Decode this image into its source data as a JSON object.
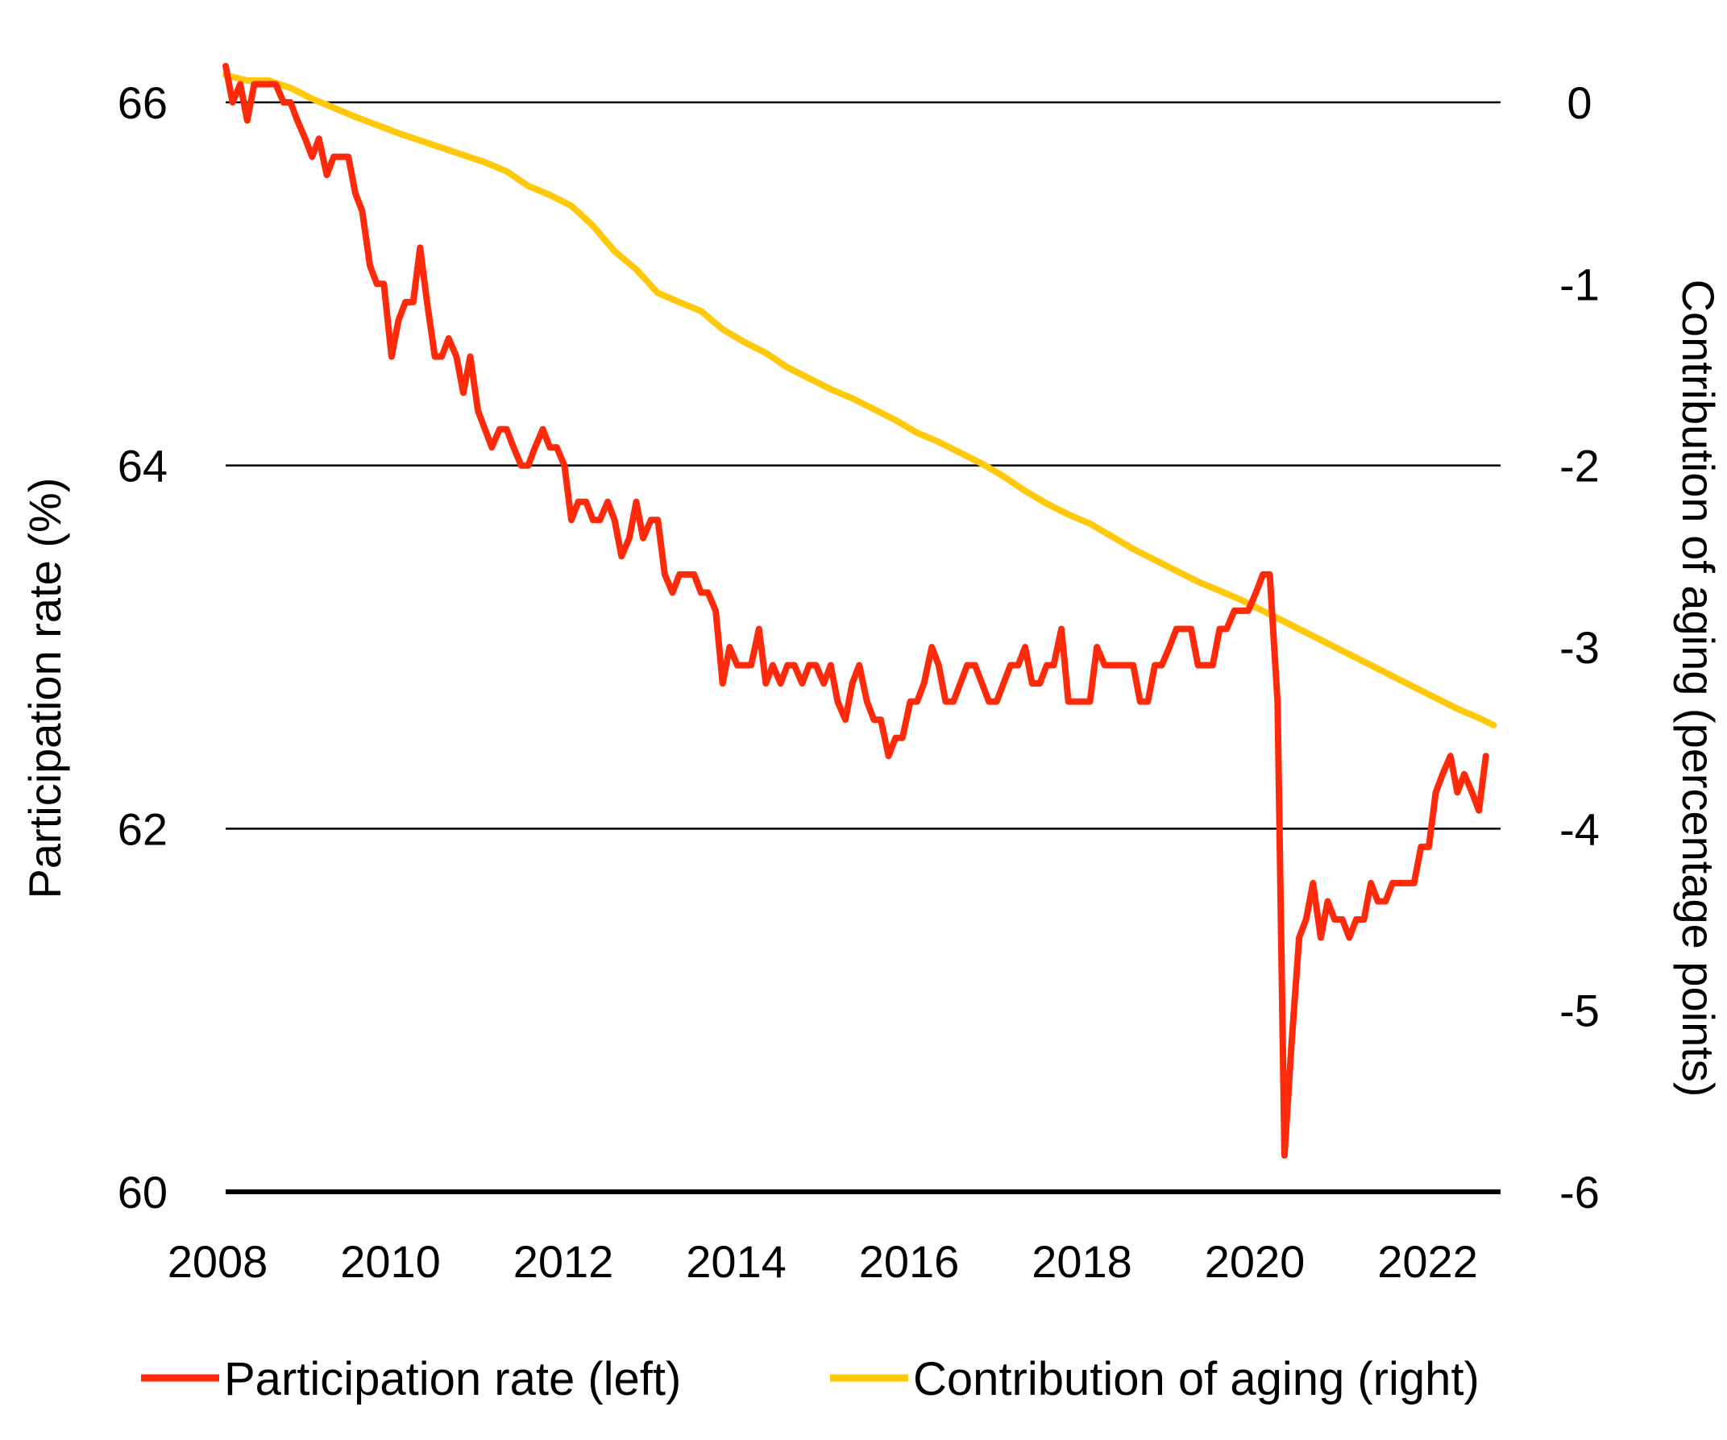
{
  "chart_data": {
    "type": "line",
    "title": "",
    "xlabel": "",
    "ylabel_left": "Participation rate (%)",
    "ylabel_right": "Contribution of aging (percentage points)",
    "xlim": [
      2008,
      2022.75
    ],
    "ylim_left": [
      60,
      66
    ],
    "ylim_right": [
      -6,
      0
    ],
    "x_ticks": [
      "2008",
      "2010",
      "2012",
      "2014",
      "2016",
      "2018",
      "2020",
      "2022"
    ],
    "y_ticks_left": [
      "66",
      "64",
      "62",
      "60"
    ],
    "y_ticks_right": [
      "0",
      "-1",
      "-2",
      "-3",
      "-4",
      "-5",
      "-6"
    ],
    "grid": "horizontal",
    "legend_position": "bottom",
    "colors": {
      "participation": "#ff2a0a",
      "aging": "#ffc90a"
    },
    "series": [
      {
        "name": "Participation rate (left)",
        "axis": "left",
        "points": [
          [
            2008.0,
            66.2
          ],
          [
            2008.08,
            66.0
          ],
          [
            2008.17,
            66.1
          ],
          [
            2008.25,
            65.9
          ],
          [
            2008.33,
            66.1
          ],
          [
            2008.42,
            66.1
          ],
          [
            2008.5,
            66.1
          ],
          [
            2008.58,
            66.1
          ],
          [
            2008.67,
            66.0
          ],
          [
            2008.75,
            66.0
          ],
          [
            2008.83,
            65.9
          ],
          [
            2008.92,
            65.8
          ],
          [
            2009.0,
            65.7
          ],
          [
            2009.08,
            65.8
          ],
          [
            2009.17,
            65.6
          ],
          [
            2009.25,
            65.7
          ],
          [
            2009.33,
            65.7
          ],
          [
            2009.42,
            65.7
          ],
          [
            2009.5,
            65.5
          ],
          [
            2009.58,
            65.4
          ],
          [
            2009.67,
            65.1
          ],
          [
            2009.75,
            65.0
          ],
          [
            2009.83,
            65.0
          ],
          [
            2009.92,
            64.6
          ],
          [
            2010.0,
            64.8
          ],
          [
            2010.08,
            64.9
          ],
          [
            2010.17,
            64.9
          ],
          [
            2010.25,
            65.2
          ],
          [
            2010.33,
            64.9
          ],
          [
            2010.42,
            64.6
          ],
          [
            2010.5,
            64.6
          ],
          [
            2010.58,
            64.7
          ],
          [
            2010.67,
            64.6
          ],
          [
            2010.75,
            64.4
          ],
          [
            2010.83,
            64.6
          ],
          [
            2010.92,
            64.3
          ],
          [
            2011.0,
            64.2
          ],
          [
            2011.08,
            64.1
          ],
          [
            2011.17,
            64.2
          ],
          [
            2011.25,
            64.2
          ],
          [
            2011.33,
            64.1
          ],
          [
            2011.42,
            64.0
          ],
          [
            2011.5,
            64.0
          ],
          [
            2011.58,
            64.1
          ],
          [
            2011.67,
            64.2
          ],
          [
            2011.75,
            64.1
          ],
          [
            2011.83,
            64.1
          ],
          [
            2011.92,
            64.0
          ],
          [
            2012.0,
            63.7
          ],
          [
            2012.08,
            63.8
          ],
          [
            2012.17,
            63.8
          ],
          [
            2012.25,
            63.7
          ],
          [
            2012.33,
            63.7
          ],
          [
            2012.42,
            63.8
          ],
          [
            2012.5,
            63.7
          ],
          [
            2012.58,
            63.5
          ],
          [
            2012.67,
            63.6
          ],
          [
            2012.75,
            63.8
          ],
          [
            2012.83,
            63.6
          ],
          [
            2012.92,
            63.7
          ],
          [
            2013.0,
            63.7
          ],
          [
            2013.08,
            63.4
          ],
          [
            2013.17,
            63.3
          ],
          [
            2013.25,
            63.4
          ],
          [
            2013.33,
            63.4
          ],
          [
            2013.42,
            63.4
          ],
          [
            2013.5,
            63.3
          ],
          [
            2013.58,
            63.3
          ],
          [
            2013.67,
            63.2
          ],
          [
            2013.75,
            62.8
          ],
          [
            2013.83,
            63.0
          ],
          [
            2013.92,
            62.9
          ],
          [
            2014.0,
            62.9
          ],
          [
            2014.08,
            62.9
          ],
          [
            2014.17,
            63.1
          ],
          [
            2014.25,
            62.8
          ],
          [
            2014.33,
            62.9
          ],
          [
            2014.42,
            62.8
          ],
          [
            2014.5,
            62.9
          ],
          [
            2014.58,
            62.9
          ],
          [
            2014.67,
            62.8
          ],
          [
            2014.75,
            62.9
          ],
          [
            2014.83,
            62.9
          ],
          [
            2014.92,
            62.8
          ],
          [
            2015.0,
            62.9
          ],
          [
            2015.08,
            62.7
          ],
          [
            2015.17,
            62.6
          ],
          [
            2015.25,
            62.8
          ],
          [
            2015.33,
            62.9
          ],
          [
            2015.42,
            62.7
          ],
          [
            2015.5,
            62.6
          ],
          [
            2015.58,
            62.6
          ],
          [
            2015.67,
            62.4
          ],
          [
            2015.75,
            62.5
          ],
          [
            2015.83,
            62.5
          ],
          [
            2015.92,
            62.7
          ],
          [
            2016.0,
            62.7
          ],
          [
            2016.08,
            62.8
          ],
          [
            2016.17,
            63.0
          ],
          [
            2016.25,
            62.9
          ],
          [
            2016.33,
            62.7
          ],
          [
            2016.42,
            62.7
          ],
          [
            2016.5,
            62.8
          ],
          [
            2016.58,
            62.9
          ],
          [
            2016.67,
            62.9
          ],
          [
            2016.75,
            62.8
          ],
          [
            2016.83,
            62.7
          ],
          [
            2016.92,
            62.7
          ],
          [
            2017.0,
            62.8
          ],
          [
            2017.08,
            62.9
          ],
          [
            2017.17,
            62.9
          ],
          [
            2017.25,
            63.0
          ],
          [
            2017.33,
            62.8
          ],
          [
            2017.42,
            62.8
          ],
          [
            2017.5,
            62.9
          ],
          [
            2017.58,
            62.9
          ],
          [
            2017.67,
            63.1
          ],
          [
            2017.75,
            62.7
          ],
          [
            2017.83,
            62.7
          ],
          [
            2017.92,
            62.7
          ],
          [
            2018.0,
            62.7
          ],
          [
            2018.08,
            63.0
          ],
          [
            2018.17,
            62.9
          ],
          [
            2018.25,
            62.9
          ],
          [
            2018.33,
            62.9
          ],
          [
            2018.42,
            62.9
          ],
          [
            2018.5,
            62.9
          ],
          [
            2018.58,
            62.7
          ],
          [
            2018.67,
            62.7
          ],
          [
            2018.75,
            62.9
          ],
          [
            2018.83,
            62.9
          ],
          [
            2018.92,
            63.0
          ],
          [
            2019.0,
            63.1
          ],
          [
            2019.08,
            63.1
          ],
          [
            2019.17,
            63.1
          ],
          [
            2019.25,
            62.9
          ],
          [
            2019.33,
            62.9
          ],
          [
            2019.42,
            62.9
          ],
          [
            2019.5,
            63.1
          ],
          [
            2019.58,
            63.1
          ],
          [
            2019.67,
            63.2
          ],
          [
            2019.75,
            63.2
          ],
          [
            2019.83,
            63.2
          ],
          [
            2019.92,
            63.3
          ],
          [
            2020.0,
            63.4
          ],
          [
            2020.08,
            63.4
          ],
          [
            2020.17,
            62.7
          ],
          [
            2020.25,
            60.2
          ],
          [
            2020.33,
            60.8
          ],
          [
            2020.42,
            61.4
          ],
          [
            2020.5,
            61.5
          ],
          [
            2020.58,
            61.7
          ],
          [
            2020.67,
            61.4
          ],
          [
            2020.75,
            61.6
          ],
          [
            2020.83,
            61.5
          ],
          [
            2020.92,
            61.5
          ],
          [
            2021.0,
            61.4
          ],
          [
            2021.08,
            61.5
          ],
          [
            2021.17,
            61.5
          ],
          [
            2021.25,
            61.7
          ],
          [
            2021.33,
            61.6
          ],
          [
            2021.42,
            61.6
          ],
          [
            2021.5,
            61.7
          ],
          [
            2021.58,
            61.7
          ],
          [
            2021.67,
            61.7
          ],
          [
            2021.75,
            61.7
          ],
          [
            2021.83,
            61.9
          ],
          [
            2021.92,
            61.9
          ],
          [
            2022.0,
            62.2
          ],
          [
            2022.08,
            62.3
          ],
          [
            2022.17,
            62.4
          ],
          [
            2022.25,
            62.2
          ],
          [
            2022.33,
            62.3
          ],
          [
            2022.42,
            62.2
          ],
          [
            2022.5,
            62.1
          ],
          [
            2022.58,
            62.4
          ]
        ]
      },
      {
        "name": "Contribution of aging (right)",
        "axis": "right",
        "points": [
          [
            2008.0,
            0.15
          ],
          [
            2008.25,
            0.12
          ],
          [
            2008.5,
            0.12
          ],
          [
            2008.75,
            0.08
          ],
          [
            2009.0,
            0.02
          ],
          [
            2009.5,
            -0.08
          ],
          [
            2010.0,
            -0.17
          ],
          [
            2010.5,
            -0.25
          ],
          [
            2011.0,
            -0.33
          ],
          [
            2011.25,
            -0.38
          ],
          [
            2011.5,
            -0.46
          ],
          [
            2011.75,
            -0.51
          ],
          [
            2012.0,
            -0.57
          ],
          [
            2012.25,
            -0.68
          ],
          [
            2012.5,
            -0.82
          ],
          [
            2012.75,
            -0.92
          ],
          [
            2013.0,
            -1.05
          ],
          [
            2013.25,
            -1.1
          ],
          [
            2013.5,
            -1.15
          ],
          [
            2013.75,
            -1.25
          ],
          [
            2014.0,
            -1.32
          ],
          [
            2014.25,
            -1.38
          ],
          [
            2014.5,
            -1.46
          ],
          [
            2014.75,
            -1.52
          ],
          [
            2015.0,
            -1.58
          ],
          [
            2015.25,
            -1.63
          ],
          [
            2015.5,
            -1.69
          ],
          [
            2015.75,
            -1.75
          ],
          [
            2016.0,
            -1.82
          ],
          [
            2016.25,
            -1.87
          ],
          [
            2016.5,
            -1.93
          ],
          [
            2016.75,
            -1.99
          ],
          [
            2017.0,
            -2.06
          ],
          [
            2017.25,
            -2.14
          ],
          [
            2017.5,
            -2.21
          ],
          [
            2017.75,
            -2.27
          ],
          [
            2018.0,
            -2.32
          ],
          [
            2018.25,
            -2.39
          ],
          [
            2018.5,
            -2.46
          ],
          [
            2018.75,
            -2.52
          ],
          [
            2019.0,
            -2.58
          ],
          [
            2019.25,
            -2.64
          ],
          [
            2019.5,
            -2.69
          ],
          [
            2019.75,
            -2.74
          ],
          [
            2020.0,
            -2.8
          ],
          [
            2020.25,
            -2.86
          ],
          [
            2020.5,
            -2.92
          ],
          [
            2020.75,
            -2.98
          ],
          [
            2021.0,
            -3.04
          ],
          [
            2021.25,
            -3.1
          ],
          [
            2021.5,
            -3.16
          ],
          [
            2021.75,
            -3.22
          ],
          [
            2022.0,
            -3.28
          ],
          [
            2022.25,
            -3.34
          ],
          [
            2022.5,
            -3.39
          ],
          [
            2022.67,
            -3.43
          ]
        ]
      }
    ]
  }
}
